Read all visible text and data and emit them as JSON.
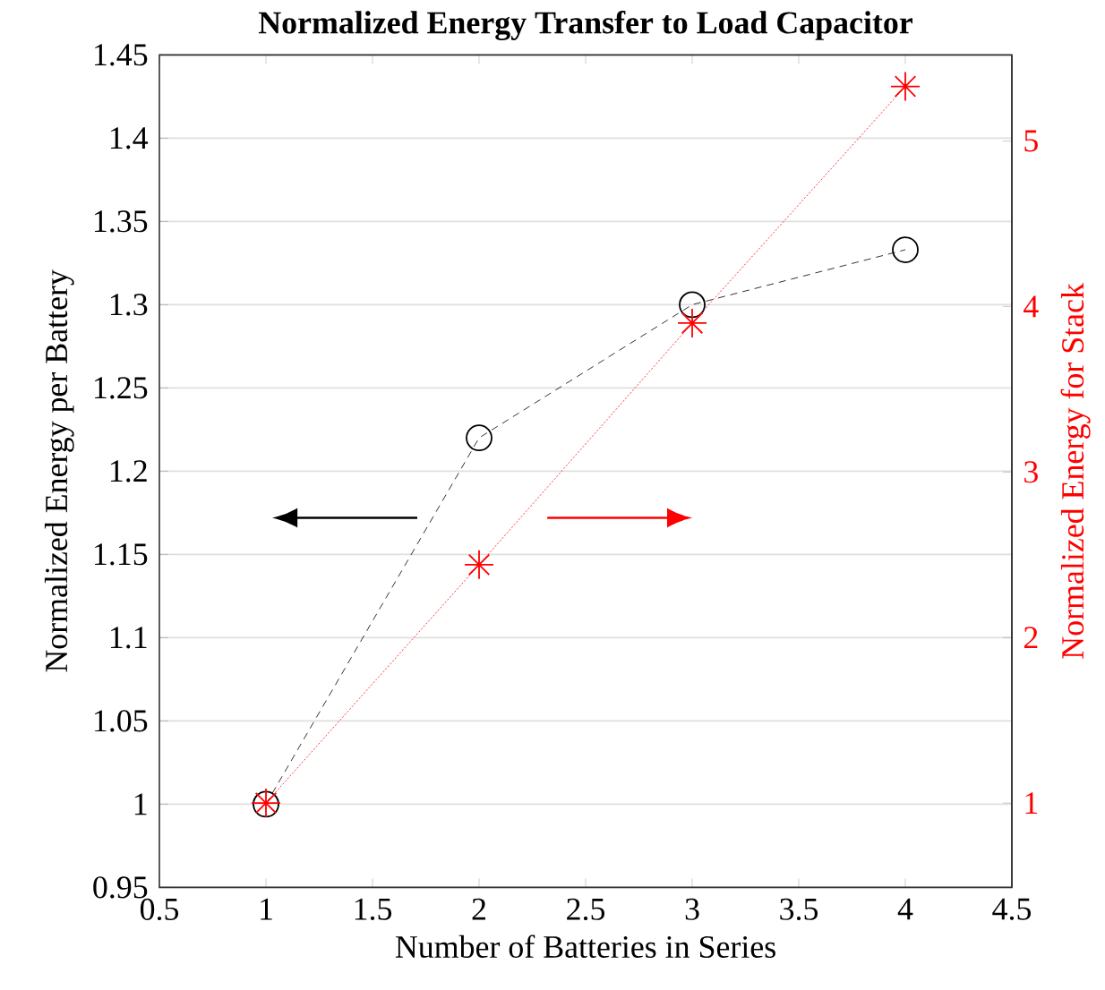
{
  "chart_data": {
    "type": "line",
    "title": "Normalized Energy Transfer to Load Capacitor",
    "xlabel": "Number of Batteries in Series",
    "ylabel": "Normalized Energy per Battery",
    "y2label": "Normalized Energy for Stack",
    "x": [
      1,
      2,
      3,
      4
    ],
    "series": [
      {
        "color": "#000000",
        "values": [
          1,
          1.22,
          1.3,
          1.333
        ],
        "marker": "circle",
        "line_style": "dashed"
      },
      {
        "color": "#ff0000",
        "values": [
          1,
          2.44,
          3.9,
          5.33
        ],
        "marker": "cross",
        "line_style": "dotted",
        "axis": "y2"
      }
    ],
    "xlim": [
      0.5,
      4.5
    ],
    "xticks": [
      0.5,
      1,
      1.5,
      2,
      2.5,
      3,
      3.5,
      4,
      4.5
    ],
    "ylim": [
      0.95,
      1.45
    ],
    "yticks": [
      0.95,
      1,
      1.05,
      1.1,
      1.15,
      1.2,
      1.25,
      1.3,
      1.35,
      1.4,
      1.45
    ],
    "y2lim": [
      0.49,
      5.52
    ],
    "y2ticks": [
      1,
      2,
      3,
      4,
      5
    ],
    "grid": "y"
  }
}
